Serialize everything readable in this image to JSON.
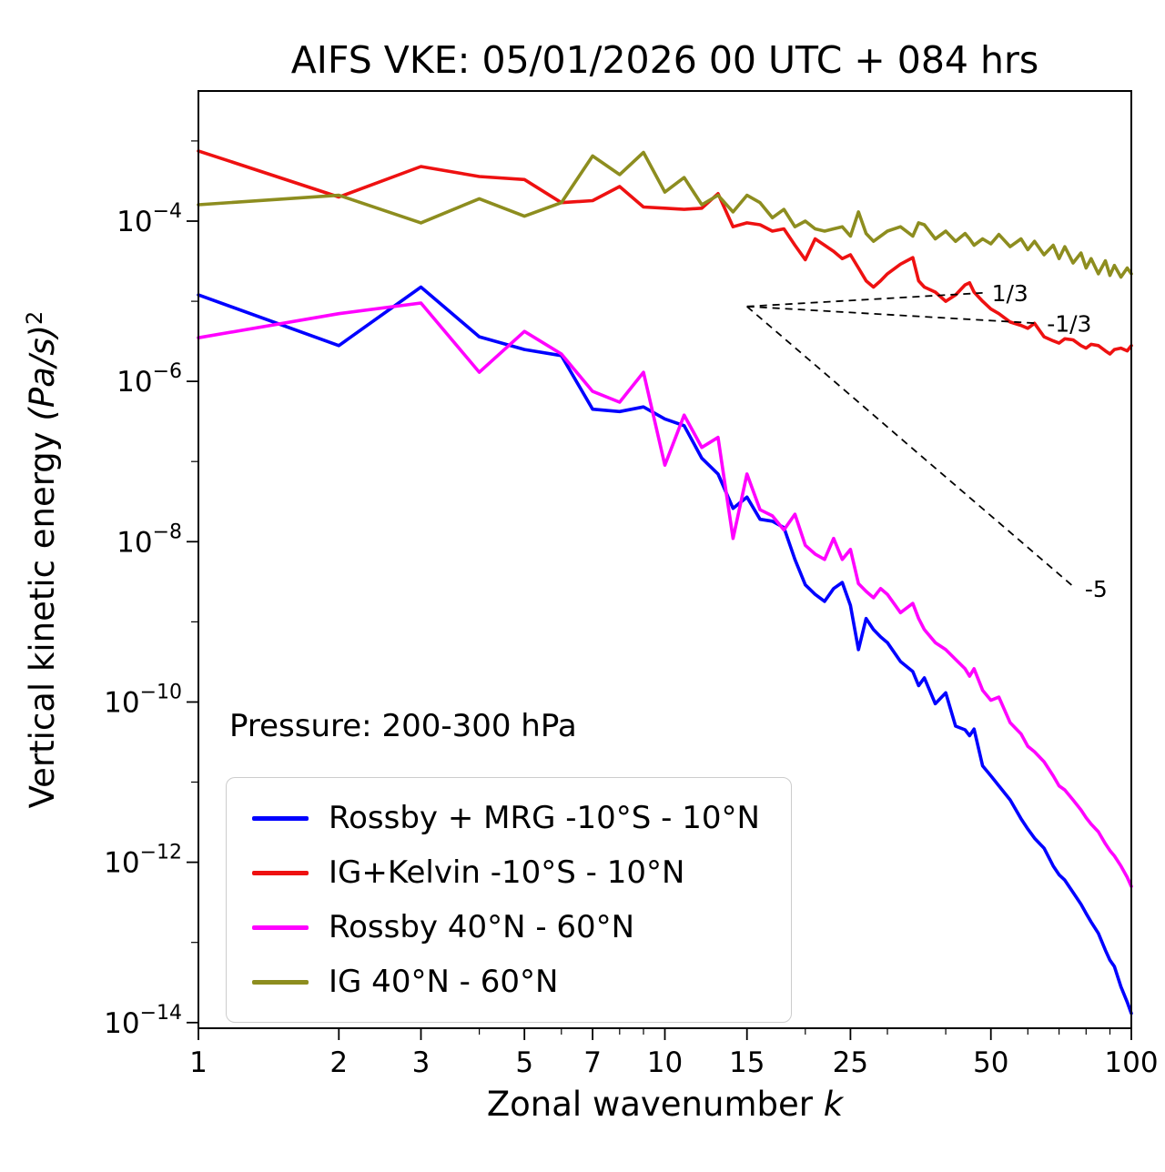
{
  "title": "AIFS VKE: 05/01/2026 00 UTC + 084 hrs",
  "annotation": "Pressure: 200-300 hPa",
  "axes": {
    "xlabel_text": "Zonal wavenumber ",
    "xlabel_symbol": "k",
    "ylabel_text": "Vertical kinetic energy ",
    "ylabel_unit": "(Pa/s)",
    "ylabel_exponent": "2"
  },
  "chart_data": {
    "type": "line",
    "xscale": "log",
    "yscale": "log",
    "xlim": [
      1,
      100
    ],
    "ylim": [
      8.5e-15,
      0.0042
    ],
    "xticks": [
      1,
      2,
      3,
      5,
      7,
      10,
      15,
      25,
      50,
      100
    ],
    "xminor": [
      4,
      6,
      8,
      9,
      20,
      30,
      40,
      60,
      70,
      80,
      90
    ],
    "ytick_exponents": [
      -14,
      -12,
      -10,
      -8,
      -6,
      -4
    ],
    "yminor_exponents": [
      -13,
      -11,
      -9,
      -7,
      -5,
      -3
    ],
    "x": [
      1,
      2,
      3,
      4,
      5,
      6,
      7,
      8,
      9,
      10,
      11,
      12,
      13,
      14,
      15,
      16,
      17,
      18,
      19,
      20,
      21,
      22,
      23,
      24,
      25,
      26,
      27,
      28,
      29,
      30,
      32,
      34,
      35,
      36,
      38,
      40,
      42,
      44,
      45,
      46,
      48,
      50,
      52,
      55,
      58,
      60,
      62,
      65,
      68,
      70,
      72,
      75,
      78,
      80,
      82,
      85,
      88,
      90,
      92,
      95,
      98,
      100
    ],
    "series": [
      {
        "name": "Rossby + MRG -10°S - 10°N",
        "color": "#0000ff",
        "y": [
          1.2e-05,
          2.8e-06,
          1.5e-05,
          3.6e-06,
          2.5e-06,
          2.1e-06,
          4.5e-07,
          4.2e-07,
          4.8e-07,
          3.4e-07,
          2.8e-07,
          1.1e-07,
          7e-08,
          2.6e-08,
          3.6e-08,
          1.9e-08,
          1.8e-08,
          1.5e-08,
          6e-09,
          2.9e-09,
          2.2e-09,
          1.8e-09,
          2.6e-09,
          3.1e-09,
          1.6e-09,
          4.5e-10,
          1.1e-09,
          8e-10,
          6.5e-10,
          5.5e-10,
          3.2e-10,
          2.4e-10,
          1.6e-10,
          2e-10,
          9.5e-11,
          1.3e-10,
          5e-11,
          4.5e-11,
          3.8e-11,
          4.6e-11,
          1.6e-11,
          1.2e-11,
          9e-12,
          6e-12,
          3.5e-12,
          2.6e-12,
          2e-12,
          1.5e-12,
          9e-13,
          7e-13,
          6e-13,
          4.2e-13,
          3e-13,
          2.3e-13,
          1.8e-13,
          1.3e-13,
          8e-14,
          6e-14,
          5e-14,
          2.8e-14,
          1.8e-14,
          1.3e-14
        ]
      },
      {
        "name": "IG+Kelvin -10°S - 10°N",
        "color": "#ee1111",
        "y": [
          0.00075,
          0.0002,
          0.00048,
          0.00036,
          0.00033,
          0.00017,
          0.00018,
          0.00027,
          0.00015,
          0.000145,
          0.00014,
          0.000145,
          0.00022,
          8.5e-05,
          9.5e-05,
          9e-05,
          7.5e-05,
          8e-05,
          5e-05,
          3.3e-05,
          6e-05,
          5e-05,
          4.2e-05,
          3.4e-05,
          3.8e-05,
          2.6e-05,
          1.8e-05,
          1.5e-05,
          1.8e-05,
          2.2e-05,
          2.9e-05,
          3.5e-05,
          1.8e-05,
          1.5e-05,
          1.3e-05,
          1e-05,
          1.2e-05,
          1.6e-05,
          1.7e-05,
          1.3e-05,
          1e-05,
          8e-06,
          7e-06,
          5.5e-06,
          5e-06,
          4.6e-06,
          5.3e-06,
          3.6e-06,
          3.2e-06,
          3e-06,
          3.4e-06,
          3.3e-06,
          2.8e-06,
          2.6e-06,
          2.9e-06,
          2.8e-06,
          2.4e-06,
          2.2e-06,
          2.5e-06,
          2.6e-06,
          2.4e-06,
          2.8e-06
        ]
      },
      {
        "name": "Rossby 40°N - 60°N",
        "color": "#ff00ff",
        "y": [
          3.5e-06,
          7e-06,
          9.5e-06,
          1.3e-06,
          4.2e-06,
          2.2e-06,
          7.5e-07,
          5.5e-07,
          1.3e-06,
          9e-08,
          3.8e-07,
          1.5e-07,
          2e-07,
          1.1e-08,
          7e-08,
          2.5e-08,
          2.1e-08,
          1.4e-08,
          2.2e-08,
          9e-09,
          7e-09,
          6e-09,
          1.1e-08,
          6e-09,
          8e-09,
          3e-09,
          2.4e-09,
          2e-09,
          2.6e-09,
          2.2e-09,
          1.3e-09,
          1.7e-09,
          1.1e-09,
          8e-10,
          5.5e-10,
          4.5e-10,
          3.4e-10,
          2.6e-10,
          2.1e-10,
          2.6e-10,
          1.4e-10,
          1.05e-10,
          1.15e-10,
          5.5e-11,
          4e-11,
          2.8e-11,
          2.4e-11,
          1.8e-11,
          1.2e-11,
          9e-12,
          8e-12,
          6e-12,
          4.5e-12,
          3.6e-12,
          3e-12,
          2.4e-12,
          1.7e-12,
          1.4e-12,
          1.2e-12,
          9e-13,
          6.5e-13,
          5e-13
        ]
      },
      {
        "name": "IG 40°N - 60°N",
        "color": "#8d8d1f",
        "y": [
          0.00016,
          0.00021,
          9.5e-05,
          0.00019,
          0.000115,
          0.00017,
          0.00065,
          0.00038,
          0.00072,
          0.00023,
          0.00035,
          0.00016,
          0.00021,
          0.00013,
          0.00021,
          0.00017,
          0.00011,
          0.00014,
          8.5e-05,
          0.0001,
          8e-05,
          7.5e-05,
          8e-05,
          8.5e-05,
          6.5e-05,
          0.00013,
          7e-05,
          5.6e-05,
          6.5e-05,
          7.5e-05,
          8.5e-05,
          6.5e-05,
          9.5e-05,
          9e-05,
          6e-05,
          7.5e-05,
          5.6e-05,
          7e-05,
          6e-05,
          5e-05,
          6e-05,
          5.2e-05,
          6.8e-05,
          4.8e-05,
          6e-05,
          4.4e-05,
          5.6e-05,
          3.8e-05,
          5e-05,
          3.4e-05,
          4.8e-05,
          3e-05,
          4e-05,
          2.6e-05,
          3.4e-05,
          2.2e-05,
          3.2e-05,
          2.1e-05,
          2.8e-05,
          2e-05,
          2.6e-05,
          2.2e-05
        ]
      }
    ],
    "reference_lines": [
      {
        "label": "1/3",
        "x1": 15,
        "y1": 8.6e-06,
        "x2": 48,
        "y2": 1.27e-05
      },
      {
        "label": "-1/3",
        "x1": 15,
        "y1": 8.6e-06,
        "x2": 63,
        "y2": 5.3e-06
      },
      {
        "label": "-5",
        "x1": 15,
        "y1": 8.6e-06,
        "x2": 76,
        "y2": 2.6e-09
      }
    ],
    "legend_position": "lower left",
    "grid": false
  }
}
